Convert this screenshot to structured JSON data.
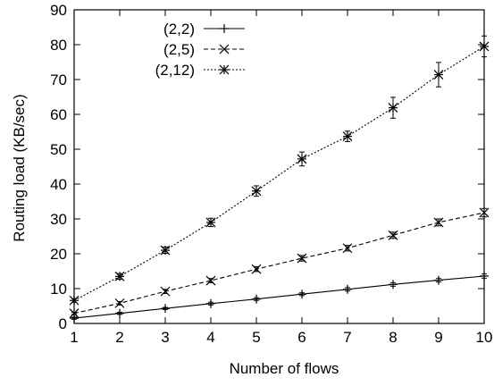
{
  "chart_data": {
    "type": "line",
    "title": "",
    "xlabel": "Number of flows",
    "ylabel": "Routing load (KB/sec)",
    "xlim": [
      1,
      10
    ],
    "ylim": [
      0,
      90
    ],
    "x_ticks": [
      "1",
      "2",
      "3",
      "4",
      "5",
      "6",
      "7",
      "8",
      "9",
      "10"
    ],
    "y_ticks": [
      "0",
      "10",
      "20",
      "30",
      "40",
      "50",
      "60",
      "70",
      "80",
      "90"
    ],
    "grid": false,
    "legend_position": "top-left",
    "x": [
      1,
      2,
      3,
      4,
      5,
      6,
      7,
      8,
      9,
      10
    ],
    "series": [
      {
        "name": "(2,2)",
        "marker": "plus",
        "line_style": "solid",
        "color": "#000000",
        "values": [
          1.5,
          2.9,
          4.3,
          5.7,
          7.0,
          8.4,
          9.8,
          11.2,
          12.4,
          13.6
        ],
        "errors": [
          0.3,
          0.3,
          0.3,
          0.4,
          0.4,
          0.4,
          0.5,
          0.5,
          0.5,
          0.6
        ]
      },
      {
        "name": "(2,5)",
        "marker": "cross",
        "line_style": "dashed",
        "color": "#000000",
        "values": [
          2.9,
          5.8,
          9.2,
          12.3,
          15.6,
          18.7,
          21.6,
          25.3,
          29.0,
          31.8
        ],
        "errors": [
          0.3,
          0.5,
          0.6,
          0.6,
          0.7,
          0.8,
          0.8,
          0.9,
          1.0,
          1.2
        ]
      },
      {
        "name": "(2,12)",
        "marker": "star",
        "line_style": "dotted",
        "color": "#000000",
        "values": [
          6.6,
          13.5,
          21.0,
          29.0,
          38.0,
          47.2,
          53.7,
          61.9,
          71.4,
          79.5
        ],
        "errors": [
          0.5,
          0.8,
          0.9,
          1.2,
          1.5,
          2.0,
          1.5,
          3.0,
          3.5,
          3.0
        ]
      }
    ]
  }
}
